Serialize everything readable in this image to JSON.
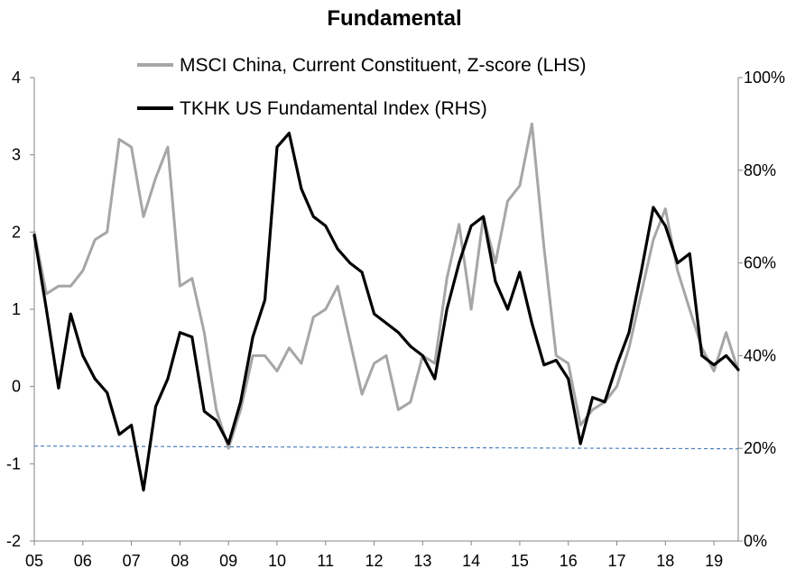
{
  "chart_data": {
    "type": "line",
    "title": "Fundamental",
    "x": [
      "2005-01",
      "2005-04",
      "2005-07",
      "2005-10",
      "2006-01",
      "2006-04",
      "2006-07",
      "2006-10",
      "2007-01",
      "2007-04",
      "2007-07",
      "2007-10",
      "2008-01",
      "2008-04",
      "2008-07",
      "2008-10",
      "2009-01",
      "2009-04",
      "2009-07",
      "2009-10",
      "2010-01",
      "2010-04",
      "2010-07",
      "2010-10",
      "2011-01",
      "2011-04",
      "2011-07",
      "2011-10",
      "2012-01",
      "2012-04",
      "2012-07",
      "2012-10",
      "2013-01",
      "2013-04",
      "2013-07",
      "2013-10",
      "2014-01",
      "2014-04",
      "2014-07",
      "2014-10",
      "2015-01",
      "2015-04",
      "2015-07",
      "2015-10",
      "2016-01",
      "2016-04",
      "2016-07",
      "2016-10",
      "2017-01",
      "2017-04",
      "2017-07",
      "2017-10",
      "2018-01",
      "2018-04",
      "2018-07",
      "2018-10",
      "2019-01",
      "2019-04",
      "2019-07"
    ],
    "x_ticks": [
      "05",
      "06",
      "07",
      "08",
      "09",
      "10",
      "11",
      "12",
      "13",
      "14",
      "15",
      "16",
      "17",
      "18",
      "19"
    ],
    "series": [
      {
        "name": "MSCI China, Current Constituent, Z-score (LHS)",
        "axis": "left",
        "color": "#a6a6a6",
        "values": [
          2.0,
          1.2,
          1.3,
          1.3,
          1.5,
          1.9,
          2.0,
          3.2,
          3.1,
          2.2,
          2.7,
          3.1,
          1.3,
          1.4,
          0.7,
          -0.3,
          -0.8,
          -0.3,
          0.4,
          0.4,
          0.2,
          0.5,
          0.3,
          0.9,
          1.0,
          1.3,
          0.6,
          -0.1,
          0.3,
          0.4,
          -0.3,
          -0.2,
          0.4,
          0.3,
          1.4,
          2.1,
          1.0,
          2.2,
          1.6,
          2.4,
          2.6,
          3.4,
          1.8,
          0.4,
          0.3,
          -0.5,
          -0.3,
          -0.2,
          0.0,
          0.5,
          1.2,
          1.9,
          2.3,
          1.5,
          1.0,
          0.5,
          0.2,
          0.7,
          0.2
        ]
      },
      {
        "name": "TKHK US Fundamental Index (RHS)",
        "axis": "right",
        "color": "#000000",
        "values": [
          0.66,
          0.5,
          0.33,
          0.49,
          0.4,
          0.35,
          0.32,
          0.23,
          0.25,
          0.11,
          0.29,
          0.35,
          0.45,
          0.44,
          0.28,
          0.26,
          0.21,
          0.3,
          0.44,
          0.52,
          0.85,
          0.88,
          0.76,
          0.7,
          0.68,
          0.63,
          0.6,
          0.58,
          0.49,
          0.47,
          0.45,
          0.42,
          0.4,
          0.35,
          0.5,
          0.6,
          0.68,
          0.7,
          0.56,
          0.5,
          0.58,
          0.47,
          0.38,
          0.39,
          0.35,
          0.21,
          0.31,
          0.3,
          0.38,
          0.45,
          0.58,
          0.72,
          0.68,
          0.6,
          0.62,
          0.4,
          0.38,
          0.4,
          0.37
        ]
      }
    ],
    "reference_line": {
      "axis": "right",
      "values": [
        0.205,
        0.199
      ],
      "style": "dashed",
      "color": "#4f81bd"
    },
    "ylim": [
      -2,
      4
    ],
    "yticks": [
      -2,
      -1,
      0,
      1,
      2,
      3,
      4
    ],
    "y2lim": [
      0,
      1
    ],
    "y2ticks": [
      "0%",
      "20%",
      "40%",
      "60%",
      "80%",
      "100%"
    ],
    "xlabel": "",
    "ylabel": "",
    "grid": false,
    "legend_position": "top-center"
  }
}
